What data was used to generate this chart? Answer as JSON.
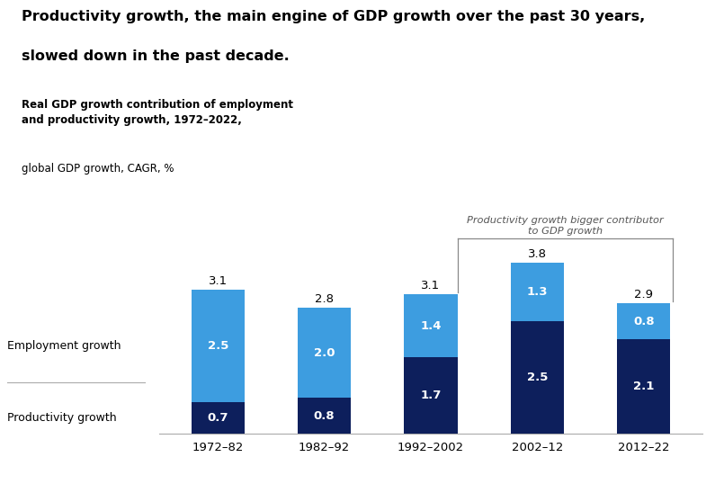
{
  "categories": [
    "1972–82",
    "1982–92",
    "1992–2002",
    "2002–12",
    "2012–22"
  ],
  "productivity": [
    0.7,
    0.8,
    1.7,
    2.5,
    2.1
  ],
  "employment": [
    2.5,
    2.0,
    1.4,
    1.3,
    0.8
  ],
  "totals": [
    3.1,
    2.8,
    3.1,
    3.8,
    2.9
  ],
  "color_dark": "#0d1f5c",
  "color_light": "#3d9de0",
  "title_line1": "Productivity growth, the main engine of GDP growth over the past 30 years,",
  "title_line2": "slowed down in the past decade.",
  "subtitle_bold": "Real GDP growth contribution of employment\nand productivity growth, 1972–2022,",
  "subtitle_normal": "global GDP growth, CAGR, %",
  "annotation_text": "Productivity growth bigger contributor\nto GDP growth",
  "ylabel_employment": "Employment growth",
  "ylabel_productivity": "Productivity growth",
  "bar_width": 0.5,
  "ylim": [
    0,
    4.6
  ],
  "bg_color": "#ffffff"
}
